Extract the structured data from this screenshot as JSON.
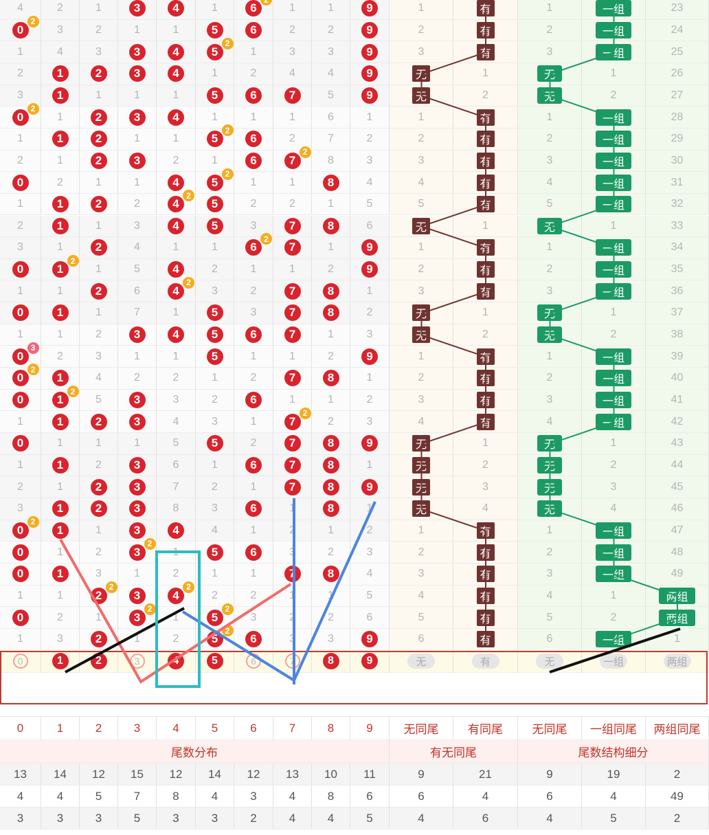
{
  "rows": [
    {
      "d": [
        4,
        2,
        1,
        "b3",
        "b4",
        1,
        "b6:2",
        1,
        1,
        "b9"
      ],
      "m1": [
        1
      ],
      "m2": "有",
      "s1": [
        1
      ],
      "s2": "一组",
      "s3": [],
      "n": "23"
    },
    {
      "d": [
        "b0:2",
        3,
        2,
        1,
        1,
        "b5",
        "b6",
        2,
        2,
        "b9"
      ],
      "m1": [
        2
      ],
      "m2": "有",
      "s1": [
        2
      ],
      "s2": "一组",
      "s3": [],
      "n": "24"
    },
    {
      "d": [
        1,
        4,
        3,
        "b3",
        "b4",
        "b5:2",
        1,
        3,
        3,
        "b9"
      ],
      "m1": [
        3
      ],
      "m2": "有",
      "s1": [
        3
      ],
      "s2": "一组",
      "s3": [],
      "n": "25"
    },
    {
      "d": [
        2,
        "b1",
        "b2",
        "b3",
        "b4",
        1,
        2,
        4,
        4,
        "b9"
      ],
      "m1": "无",
      "m2": [
        1
      ],
      "s1": "无",
      "s2": [
        1
      ],
      "s3": [],
      "n": "26"
    },
    {
      "d": [
        3,
        "b1",
        1,
        1,
        1,
        "b5",
        "b6",
        "b7",
        5,
        "b9"
      ],
      "m1": "无",
      "m2": [
        2
      ],
      "s1": "无",
      "s2": [
        2
      ],
      "s3": [],
      "n": "27"
    },
    {
      "d": [
        "b0:2",
        1,
        "b2",
        "b3",
        "b4",
        1,
        1,
        1,
        6,
        1
      ],
      "m1": [
        1
      ],
      "m2": "有",
      "s1": [
        1
      ],
      "s2": "一组",
      "s3": [],
      "n": "28"
    },
    {
      "d": [
        1,
        "b1",
        "b2",
        1,
        1,
        "b5:2",
        "b6",
        2,
        7,
        2
      ],
      "m1": [
        2
      ],
      "m2": "有",
      "s1": [
        2
      ],
      "s2": "一组",
      "s3": [],
      "n": "29"
    },
    {
      "d": [
        2,
        1,
        "b2",
        "b3",
        2,
        1,
        "b6",
        "b7:2",
        8,
        3
      ],
      "m1": [
        3
      ],
      "m2": "有",
      "s1": [
        3
      ],
      "s2": "一组",
      "s3": [],
      "n": "30"
    },
    {
      "d": [
        "b0",
        2,
        1,
        1,
        "b4",
        "b5:2",
        1,
        1,
        "b8",
        4
      ],
      "m1": [
        4
      ],
      "m2": "有",
      "s1": [
        4
      ],
      "s2": "一组",
      "s3": [],
      "n": "31"
    },
    {
      "d": [
        1,
        "b1",
        "b2",
        2,
        "b4:2",
        "b5",
        2,
        2,
        1,
        5
      ],
      "m1": [
        5
      ],
      "m2": "有",
      "s1": [
        5
      ],
      "s2": "一组",
      "s3": [],
      "n": "32"
    },
    {
      "d": [
        2,
        "b1",
        1,
        3,
        "b4",
        "b5",
        3,
        "b7",
        "b8",
        6
      ],
      "m1": "无",
      "m2": [
        1
      ],
      "s1": "无",
      "s2": [
        1
      ],
      "s3": [],
      "n": "33"
    },
    {
      "d": [
        3,
        1,
        "b2",
        4,
        1,
        1,
        "b6:2",
        "b7",
        1,
        "b9"
      ],
      "m1": [
        1
      ],
      "m2": "有",
      "s1": [
        1
      ],
      "s2": "一组",
      "s3": [],
      "n": "34"
    },
    {
      "d": [
        "b0",
        "b1:2",
        1,
        5,
        "b4",
        2,
        1,
        1,
        2,
        "b9"
      ],
      "m1": [
        2
      ],
      "m2": "有",
      "s1": [
        2
      ],
      "s2": "一组",
      "s3": [],
      "n": "35"
    },
    {
      "d": [
        1,
        1,
        "b2",
        6,
        "b4:2",
        3,
        2,
        "b7",
        "b8",
        1
      ],
      "m1": [
        3
      ],
      "m2": "有",
      "s1": [
        3
      ],
      "s2": "一组",
      "s3": [],
      "n": "36"
    },
    {
      "d": [
        "b0",
        "b1",
        1,
        7,
        1,
        "b5",
        3,
        "b7",
        "b8",
        2
      ],
      "m1": "无",
      "m2": [
        1
      ],
      "s1": "无",
      "s2": [
        1
      ],
      "s3": [],
      "n": "37"
    },
    {
      "d": [
        1,
        1,
        2,
        "b3",
        "b4",
        "b5",
        "b6",
        "b7",
        1,
        3
      ],
      "m1": "无",
      "m2": [
        2
      ],
      "s1": "无",
      "s2": [
        2
      ],
      "s3": [],
      "n": "38"
    },
    {
      "d": [
        "b0:3",
        2,
        3,
        1,
        1,
        "b5",
        1,
        1,
        2,
        "b9"
      ],
      "m1": [
        1
      ],
      "m2": "有",
      "s1": [
        1
      ],
      "s2": "一组",
      "s3": [],
      "n": "39"
    },
    {
      "d": [
        "b0:2",
        "b1",
        4,
        2,
        2,
        1,
        2,
        "b7",
        "b8",
        1
      ],
      "m1": [
        2
      ],
      "m2": "有",
      "s1": [
        2
      ],
      "s2": "一组",
      "s3": [],
      "n": "40"
    },
    {
      "d": [
        "b0",
        "b1:2",
        5,
        "b3",
        3,
        2,
        "b6",
        1,
        1,
        2
      ],
      "m1": [
        3
      ],
      "m2": "有",
      "s1": [
        3
      ],
      "s2": "一组",
      "s3": [],
      "n": "41"
    },
    {
      "d": [
        1,
        "b1",
        "b2",
        "b3",
        4,
        3,
        1,
        "b7:2",
        2,
        3
      ],
      "m1": [
        4
      ],
      "m2": "有",
      "s1": [
        4
      ],
      "s2": "一组",
      "s3": [],
      "n": "42"
    },
    {
      "d": [
        "b0",
        1,
        1,
        1,
        5,
        "b5",
        2,
        "b7",
        "b8",
        "b9"
      ],
      "m1": "无",
      "m2": [
        1
      ],
      "s1": "无",
      "s2": [
        1
      ],
      "s3": [],
      "n": "43"
    },
    {
      "d": [
        1,
        "b1",
        2,
        "b3",
        6,
        1,
        "b6",
        "b7",
        "b8",
        1
      ],
      "m1": "无",
      "m2": [
        2
      ],
      "s1": "无",
      "s2": [
        2
      ],
      "s3": [],
      "n": "44"
    },
    {
      "d": [
        2,
        1,
        "b2",
        "b3",
        7,
        2,
        1,
        "b7",
        "b8",
        "b9"
      ],
      "m1": "无",
      "m2": [
        3
      ],
      "s1": "无",
      "s2": [
        3
      ],
      "s3": [],
      "n": "45"
    },
    {
      "d": [
        3,
        "b1",
        "b2",
        "b3",
        8,
        3,
        "b6",
        1,
        "b8",
        1
      ],
      "m1": "无",
      "m2": [
        4
      ],
      "s1": "无",
      "s2": [
        4
      ],
      "s3": [],
      "n": "46"
    },
    {
      "d": [
        "b0:2",
        "b1",
        1,
        "b3",
        "b4",
        4,
        1,
        2,
        1,
        2
      ],
      "m1": [
        1
      ],
      "m2": "有",
      "s1": [
        1
      ],
      "s2": "一组",
      "s3": [],
      "n": "47"
    },
    {
      "d": [
        "b0",
        1,
        2,
        "b3:2",
        1,
        "b5",
        "b6",
        3,
        2,
        3
      ],
      "m1": [
        2
      ],
      "m2": "有",
      "s1": [
        2
      ],
      "s2": "一组",
      "s3": [],
      "n": "48"
    },
    {
      "d": [
        "b0",
        "b1",
        3,
        1,
        2,
        1,
        1,
        "b7",
        "b8",
        4
      ],
      "m1": [
        3
      ],
      "m2": "有",
      "s1": [
        3
      ],
      "s2": "一组",
      "s3": [],
      "n": "49"
    },
    {
      "d": [
        1,
        1,
        "b2:2",
        "b3",
        "b4:2",
        2,
        2,
        1,
        1,
        5
      ],
      "m1": [
        4
      ],
      "m2": "有",
      "s1": [
        4
      ],
      "s2": [
        1
      ],
      "s3": "两组",
      "n": ""
    },
    {
      "d": [
        "b0",
        2,
        1,
        "b3:2",
        1,
        "b5:2",
        3,
        2,
        2,
        6
      ],
      "m1": [
        5
      ],
      "m2": "有",
      "s1": [
        5
      ],
      "s2": [
        2
      ],
      "s3": "两组",
      "n": ""
    },
    {
      "d": [
        1,
        3,
        "b2",
        1,
        2,
        "b5:2",
        "b6",
        3,
        3,
        "b9"
      ],
      "m1": [
        6
      ],
      "m2": "有",
      "s1": [
        6
      ],
      "s2": "一组",
      "s3": [],
      "n": "1"
    }
  ],
  "selector": {
    "digits": [
      "0",
      "1",
      "2",
      "3",
      "4",
      "5",
      "6",
      "7",
      "8",
      "9"
    ],
    "active": [
      false,
      true,
      true,
      false,
      true,
      true,
      false,
      false,
      true,
      true
    ],
    "tags": [
      "无",
      "有",
      "无",
      "一组",
      "两组"
    ]
  },
  "headers": {
    "digits": [
      "0",
      "1",
      "2",
      "3",
      "4",
      "5",
      "6",
      "7",
      "8",
      "9"
    ],
    "cols": [
      "无同尾",
      "有同尾",
      "无同尾",
      "一组同尾",
      "两组同尾"
    ],
    "group1": "尾数分布",
    "group2": "有无同尾",
    "group3": "尾数结构细分"
  },
  "stats": [
    [
      "13",
      "14",
      "12",
      "15",
      "12",
      "14",
      "12",
      "13",
      "10",
      "11",
      "9",
      "21",
      "9",
      "19",
      "2"
    ],
    [
      "4",
      "4",
      "5",
      "7",
      "8",
      "4",
      "3",
      "4",
      "8",
      "6",
      "6",
      "4",
      "6",
      "4",
      "49"
    ],
    [
      "3",
      "3",
      "3",
      "5",
      "3",
      "3",
      "2",
      "4",
      "4",
      "5",
      "4",
      "6",
      "4",
      "5",
      "2"
    ]
  ],
  "colors": {
    "ball": "#d9232d",
    "repeat": "#f3ad1f",
    "brownTag": "#6e3330",
    "greenTag": "#1c9a64"
  }
}
